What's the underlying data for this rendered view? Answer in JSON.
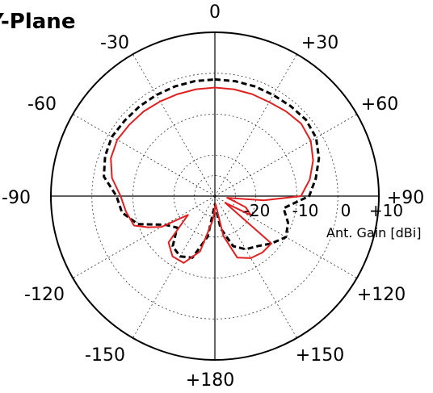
{
  "chart_data": {
    "type": "polar",
    "title": "Y-Plane",
    "radial_axis": {
      "label": "Ant. Gain [dBi]",
      "rlim": [
        -30,
        10
      ],
      "ticks": [
        -20,
        -10,
        0,
        10
      ],
      "tick_labels": [
        "-20",
        "-10",
        "0",
        "+10"
      ],
      "grid": true
    },
    "angular_axis": {
      "zero_location": "top",
      "direction": "clockwise",
      "ticks": [
        0,
        30,
        60,
        90,
        120,
        150,
        180,
        -150,
        -120,
        -90,
        -60,
        -30
      ],
      "tick_labels": [
        "0",
        "+30",
        "+60",
        "+90",
        "+120",
        "+150",
        "+180",
        "-150",
        "-120",
        "-90",
        "-60",
        "-30"
      ],
      "grid": true
    },
    "series": [
      {
        "style": "dashed",
        "color": "#000000",
        "points": [
          {
            "theta": 0,
            "r": -1.5
          },
          {
            "theta": 10,
            "r": -1.5
          },
          {
            "theta": 20,
            "r": -1.5
          },
          {
            "theta": 30,
            "r": -1.5
          },
          {
            "theta": 40,
            "r": -1.3
          },
          {
            "theta": 50,
            "r": -1.0
          },
          {
            "theta": 60,
            "r": -1.5
          },
          {
            "theta": 70,
            "r": -3.0
          },
          {
            "theta": 80,
            "r": -5.0
          },
          {
            "theta": 90,
            "r": -7.0
          },
          {
            "theta": 100,
            "r": -13.0
          },
          {
            "theta": 110,
            "r": -11.0
          },
          {
            "theta": 120,
            "r": -10.0
          },
          {
            "theta": 130,
            "r": -12.0
          },
          {
            "theta": 140,
            "r": -14.0
          },
          {
            "theta": 150,
            "r": -15.0
          },
          {
            "theta": 160,
            "r": -17.0
          },
          {
            "theta": 170,
            "r": -22.0
          },
          {
            "theta": 180,
            "r": -28.0
          },
          {
            "theta": 190,
            "r": -20.0
          },
          {
            "theta": 200,
            "r": -14.0
          },
          {
            "theta": 210,
            "r": -13.0
          },
          {
            "theta": 220,
            "r": -14.0
          },
          {
            "theta": 230,
            "r": -18.0
          },
          {
            "theta": 240,
            "r": -16.0
          },
          {
            "theta": 250,
            "r": -10.0
          },
          {
            "theta": 260,
            "r": -7.0
          },
          {
            "theta": 270,
            "r": -6.0
          },
          {
            "theta": 280,
            "r": -2.5
          },
          {
            "theta": 290,
            "r": -1.5
          },
          {
            "theta": 300,
            "r": -1.0
          },
          {
            "theta": 310,
            "r": -1.3
          },
          {
            "theta": 320,
            "r": -1.4
          },
          {
            "theta": 330,
            "r": -1.5
          },
          {
            "theta": 340,
            "r": -1.5
          },
          {
            "theta": 350,
            "r": -1.5
          }
        ]
      },
      {
        "style": "solid",
        "color": "#e02020",
        "points": [
          {
            "theta": 0,
            "r": -3.5
          },
          {
            "theta": 10,
            "r": -3.5
          },
          {
            "theta": 20,
            "r": -3.5
          },
          {
            "theta": 30,
            "r": -3.5
          },
          {
            "theta": 40,
            "r": -3.0
          },
          {
            "theta": 50,
            "r": -2.5
          },
          {
            "theta": 60,
            "r": -3.0
          },
          {
            "theta": 70,
            "r": -4.5
          },
          {
            "theta": 80,
            "r": -6.5
          },
          {
            "theta": 90,
            "r": -9.0
          },
          {
            "theta": 95,
            "r": -18.0
          },
          {
            "theta": 98,
            "r": -27.0
          },
          {
            "theta": 105,
            "r": -25.0
          },
          {
            "theta": 110,
            "r": -22.0
          },
          {
            "theta": 118,
            "r": -20.0
          },
          {
            "theta": 123,
            "r": -27.0
          },
          {
            "theta": 130,
            "r": -12.0
          },
          {
            "theta": 140,
            "r": -12.0
          },
          {
            "theta": 150,
            "r": -12.5
          },
          {
            "theta": 160,
            "r": -14.0
          },
          {
            "theta": 168,
            "r": -20.0
          },
          {
            "theta": 175,
            "r": -28.0
          },
          {
            "theta": 185,
            "r": -24.0
          },
          {
            "theta": 195,
            "r": -16.0
          },
          {
            "theta": 205,
            "r": -12.0
          },
          {
            "theta": 215,
            "r": -12.0
          },
          {
            "theta": 225,
            "r": -14.0
          },
          {
            "theta": 235,
            "r": -22.0
          },
          {
            "theta": 240,
            "r": -15.0
          },
          {
            "theta": 245,
            "r": -12.0
          },
          {
            "theta": 250,
            "r": -9.0
          },
          {
            "theta": 260,
            "r": -8.0
          },
          {
            "theta": 270,
            "r": -7.0
          },
          {
            "theta": 280,
            "r": -4.5
          },
          {
            "theta": 290,
            "r": -3.0
          },
          {
            "theta": 300,
            "r": -2.5
          },
          {
            "theta": 310,
            "r": -2.8
          },
          {
            "theta": 320,
            "r": -3.0
          },
          {
            "theta": 330,
            "r": -3.3
          },
          {
            "theta": 340,
            "r": -3.5
          },
          {
            "theta": 350,
            "r": -3.5
          }
        ]
      }
    ]
  }
}
